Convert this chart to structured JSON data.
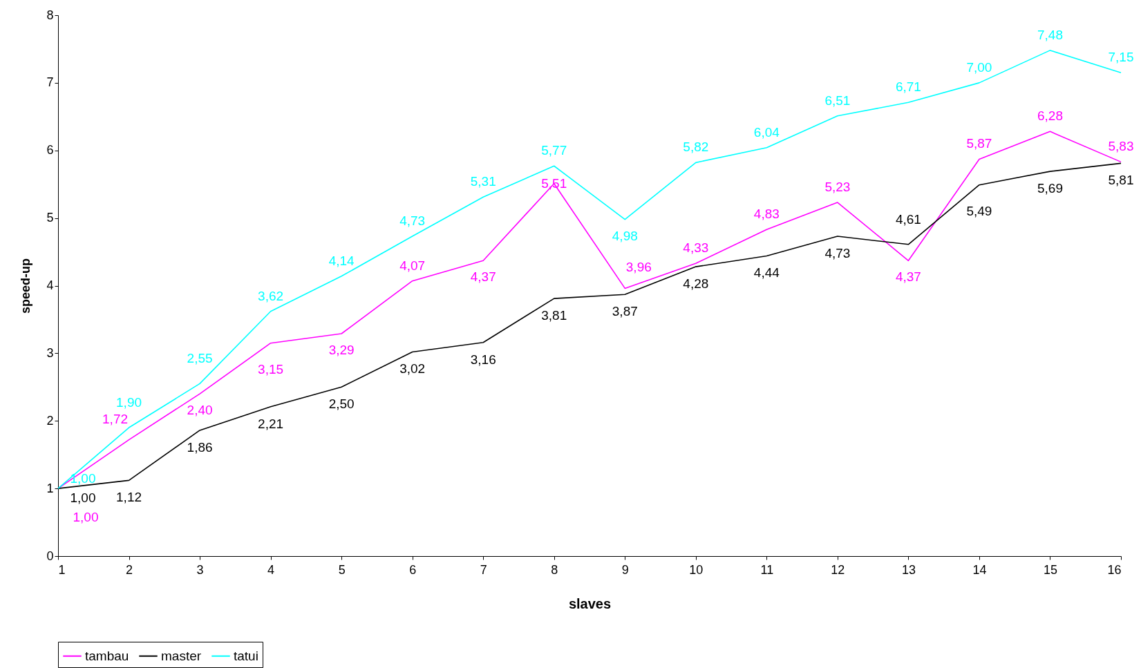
{
  "chart_data": {
    "type": "line",
    "xlabel": "slaves",
    "ylabel": "speed-up",
    "x": [
      1,
      2,
      3,
      4,
      5,
      6,
      7,
      8,
      9,
      10,
      11,
      12,
      13,
      14,
      15,
      16
    ],
    "xlim": [
      1,
      16
    ],
    "xticks": [
      1,
      2,
      3,
      4,
      5,
      6,
      7,
      8,
      9,
      10,
      11,
      12,
      13,
      14,
      15,
      16
    ],
    "ylim": [
      0,
      8
    ],
    "yticks": [
      0,
      1,
      2,
      3,
      4,
      5,
      6,
      7,
      8
    ],
    "grid": false,
    "legend": "bottom",
    "marker": "none",
    "line_style": "solid",
    "series": [
      {
        "name": "tambau",
        "color": "#ff00ff",
        "values": [
          1.0,
          1.72,
          2.4,
          3.15,
          3.29,
          4.07,
          4.37,
          5.51,
          3.96,
          4.33,
          4.83,
          5.23,
          4.37,
          5.87,
          6.28,
          5.83
        ],
        "value_labels": [
          "1,00",
          "1,72",
          "2,40",
          "3,15",
          "3,29",
          "4,07",
          "4,37",
          "5,51",
          "3,96",
          "4,33",
          "4,83",
          "5,23",
          "4,37",
          "5,87",
          "6,28",
          "5,83"
        ]
      },
      {
        "name": "master",
        "color": "#000000",
        "values": [
          1.0,
          1.12,
          1.86,
          2.21,
          2.5,
          3.02,
          3.16,
          3.81,
          3.87,
          4.28,
          4.44,
          4.73,
          4.61,
          5.49,
          5.69,
          5.81
        ],
        "value_labels": [
          "1,00",
          "1,12",
          "1,86",
          "2,21",
          "2,50",
          "3,02",
          "3,16",
          "3,81",
          "3,87",
          "4,28",
          "4,44",
          "4,73",
          "4,61",
          "5,49",
          "5,69",
          "5,81"
        ]
      },
      {
        "name": "tatui",
        "color": "#00ffff",
        "values": [
          1.0,
          1.9,
          2.55,
          3.62,
          4.14,
          4.73,
          5.31,
          5.77,
          4.98,
          5.82,
          6.04,
          6.51,
          6.71,
          7.0,
          7.48,
          7.15
        ],
        "value_labels": [
          "1,00",
          "1,90",
          "2,55",
          "3,62",
          "4,14",
          "4,73",
          "5,31",
          "5,77",
          "4,98",
          "5,82",
          "6,04",
          "6,51",
          "6,71",
          "7,00",
          "7,48",
          "7,15"
        ]
      }
    ]
  }
}
